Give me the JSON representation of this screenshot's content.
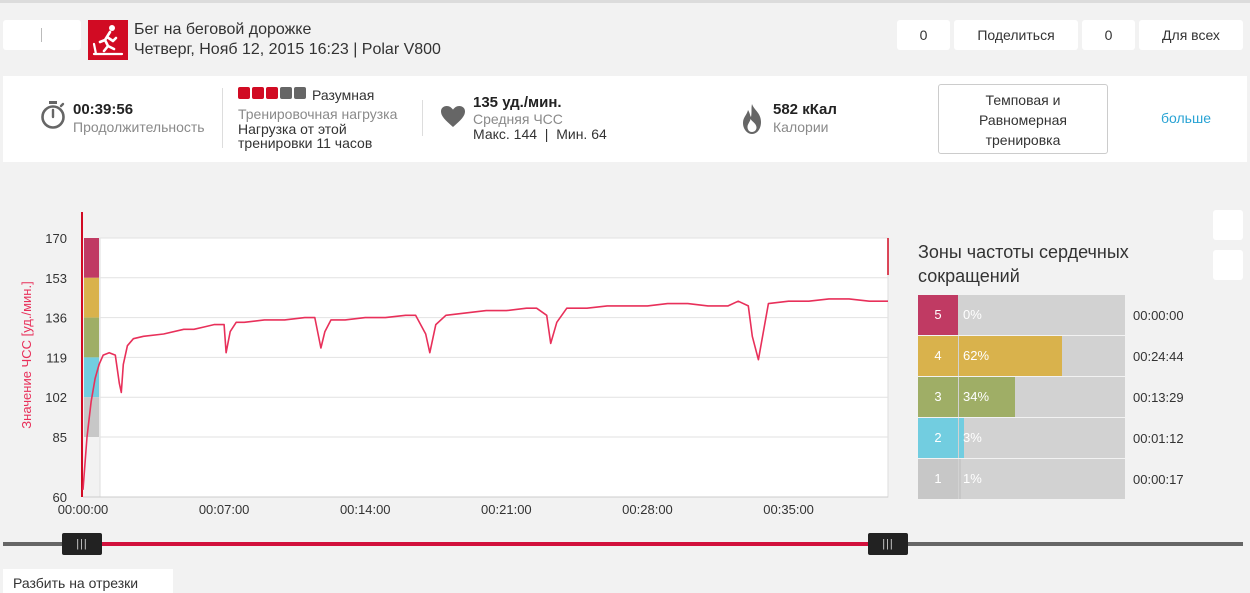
{
  "header": {
    "title": "Бег на беговой дорожке",
    "subtitle": "Четверг, Нояб 12, 2015 16:23 | Polar V800",
    "likes_count": "0",
    "share_label": "Поделиться",
    "comments_count": "0",
    "privacy_label": "Для всех"
  },
  "summary": {
    "duration_value": "00:39:56",
    "duration_label": "Продолжительность",
    "load_level": "Разумная",
    "load_label": "Тренировочная нагрузка",
    "load_text_1": "Нагрузка от этой",
    "load_text_2": "тренировки 11 часов",
    "load_filled": 3,
    "load_total": 5,
    "hr_value": "135 уд./мин.",
    "hr_label": "Средняя ЧСС",
    "hr_max_min": "Макс. 144  |  Мин. 64",
    "calories_value": "582 кКал",
    "calories_label": "Калории",
    "type_line1": "Темповая и",
    "type_line2": "Равномерная",
    "type_line3": "тренировка",
    "more_label": "больше"
  },
  "colors": {
    "accent": "#d10b23",
    "hr_line": "#e8305a",
    "zone5": "#c03a63",
    "zone4": "#d9b24c",
    "zone3": "#9fae66",
    "zone2": "#72cde0",
    "zone1": "#c7c7c7",
    "link": "#29a3d4"
  },
  "chart_data": {
    "type": "line",
    "title": "",
    "ylabel": "Значение ЧСС [уд./мин.]",
    "xlabel": "",
    "x_unit": "minutes",
    "y_ticks": [
      170,
      153,
      136,
      119,
      102,
      85,
      60
    ],
    "x_tick_labels": [
      "00:00:00",
      "00:07:00",
      "00:14:00",
      "00:21:00",
      "00:28:00",
      "00:35:00"
    ],
    "x_tick_values": [
      0,
      7,
      14,
      21,
      28,
      35
    ],
    "xlim": [
      0,
      39.93
    ],
    "zone_bands": [
      {
        "zone": 5,
        "from": 153,
        "to": 170
      },
      {
        "zone": 4,
        "from": 136,
        "to": 153
      },
      {
        "zone": 3,
        "from": 119,
        "to": 136
      },
      {
        "zone": 2,
        "from": 102,
        "to": 119
      },
      {
        "zone": 1,
        "from": 85,
        "to": 102
      }
    ],
    "series": [
      {
        "x": [
          0,
          0.2,
          0.4,
          0.6,
          0.8,
          1.0,
          1.3,
          1.6,
          1.8,
          1.9,
          2.0,
          2.2,
          2.5,
          3,
          4,
          5,
          5.5,
          6,
          6.5,
          7,
          7.1,
          7.3,
          7.6,
          8,
          9,
          10,
          11,
          11.5,
          11.8,
          12,
          12.3,
          13,
          14,
          15,
          16,
          16.5,
          17,
          17.2,
          17.5,
          18,
          19,
          20,
          21,
          22,
          22.5,
          23,
          23.2,
          23.5,
          24,
          25,
          26,
          27,
          28,
          29,
          30,
          31,
          32,
          32.5,
          33,
          33.2,
          33.5,
          34,
          35,
          36,
          37,
          38,
          39,
          39.93
        ],
        "values": [
          63,
          85,
          100,
          110,
          116,
          120,
          121,
          120,
          108,
          104,
          116,
          124,
          127,
          128,
          129,
          131,
          131,
          132,
          133,
          133,
          121,
          130,
          134,
          134,
          135,
          135,
          136,
          136,
          123,
          130,
          135,
          135,
          136,
          136,
          137,
          137,
          129,
          121,
          133,
          137,
          138,
          139,
          139,
          140,
          140,
          137,
          125,
          134,
          140,
          140,
          141,
          141,
          141,
          142,
          142,
          141,
          141,
          143,
          141,
          128,
          118,
          142,
          143,
          143,
          144,
          144,
          143,
          143
        ]
      }
    ]
  },
  "zones": {
    "title": "Зоны частоты сердечных сокращений",
    "rows": [
      {
        "zone": "5",
        "percent": "0%",
        "fraction": 0.0,
        "time": "00:00:00"
      },
      {
        "zone": "4",
        "percent": "62%",
        "fraction": 0.62,
        "time": "00:24:44"
      },
      {
        "zone": "3",
        "percent": "34%",
        "fraction": 0.34,
        "time": "00:13:29"
      },
      {
        "zone": "2",
        "percent": "3%",
        "fraction": 0.03,
        "time": "00:01:12"
      },
      {
        "zone": "1",
        "percent": "1%",
        "fraction": 0.01,
        "time": "00:00:17"
      }
    ]
  },
  "slider": {
    "handle_label": "|||",
    "start_fraction": 0.0,
    "end_fraction": 1.0
  },
  "footer": {
    "split_label": "Разбить на отрезки"
  }
}
